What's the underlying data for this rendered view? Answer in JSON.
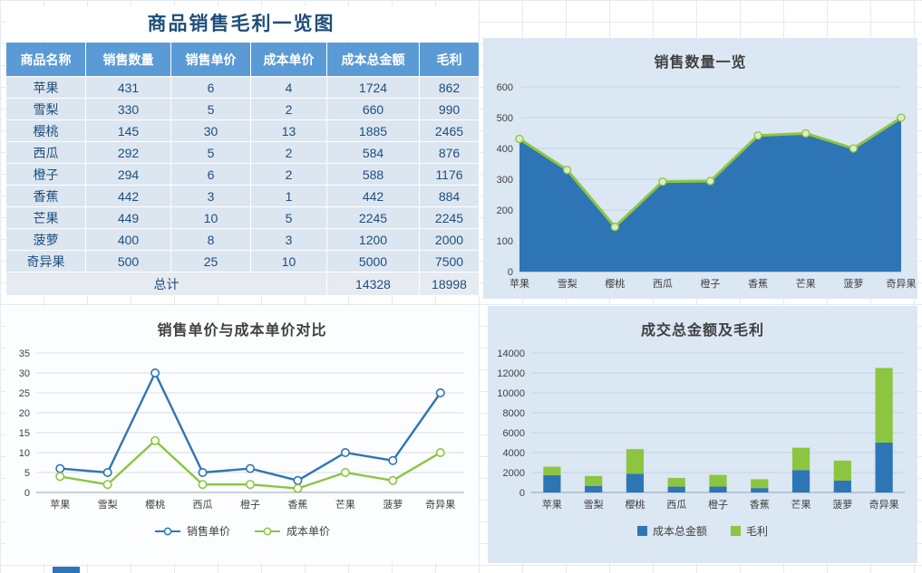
{
  "sheet": {
    "title": "商品销售毛利一览图"
  },
  "colors": {
    "header_bg": "#5B9BD5",
    "row_bg": "#DCE6F1",
    "title_text": "#1F4E79",
    "accent_blue": "#2E75B6",
    "accent_green": "#8CC540"
  },
  "table": {
    "headers": [
      "商品名称",
      "销售数量",
      "销售单价",
      "成本单价",
      "成本总金额",
      "毛利"
    ],
    "rows": [
      [
        "苹果",
        431,
        6,
        4,
        1724,
        862
      ],
      [
        "雪梨",
        330,
        5,
        2,
        660,
        990
      ],
      [
        "樱桃",
        145,
        30,
        13,
        1885,
        2465
      ],
      [
        "西瓜",
        292,
        5,
        2,
        584,
        876
      ],
      [
        "橙子",
        294,
        6,
        2,
        588,
        1176
      ],
      [
        "香蕉",
        442,
        3,
        1,
        442,
        884
      ],
      [
        "芒果",
        449,
        10,
        5,
        2245,
        2245
      ],
      [
        "菠萝",
        400,
        8,
        3,
        1200,
        2000
      ],
      [
        "奇异果",
        500,
        25,
        10,
        5000,
        7500
      ]
    ],
    "total": {
      "label": "总计",
      "cost_total": 14328,
      "profit": 18998
    }
  },
  "chart_data": [
    {
      "type": "area",
      "title": "销售数量一览",
      "categories": [
        "苹果",
        "雪梨",
        "樱桃",
        "西瓜",
        "橙子",
        "香蕉",
        "芒果",
        "菠萝",
        "奇异果"
      ],
      "values": [
        431,
        330,
        145,
        292,
        294,
        442,
        449,
        400,
        500
      ],
      "ylim": [
        0,
        600
      ],
      "ytick_step": 100,
      "grid": true,
      "legend_position": "none",
      "area_color": "#2E75B6",
      "line_color": "#8CC540"
    },
    {
      "type": "line",
      "title": "销售单价与成本单价对比",
      "categories": [
        "苹果",
        "雪梨",
        "樱桃",
        "西瓜",
        "橙子",
        "香蕉",
        "芒果",
        "菠萝",
        "奇异果"
      ],
      "series": [
        {
          "name": "销售单价",
          "values": [
            6,
            5,
            30,
            5,
            6,
            3,
            10,
            8,
            25
          ],
          "color": "#2E75B6"
        },
        {
          "name": "成本单价",
          "values": [
            4,
            2,
            13,
            2,
            2,
            1,
            5,
            3,
            10
          ],
          "color": "#8CC540"
        }
      ],
      "ylim": [
        0,
        35
      ],
      "ytick_step": 5,
      "grid": true,
      "legend_position": "bottom"
    },
    {
      "type": "bar",
      "stacked": true,
      "title": "成交总金额及毛利",
      "categories": [
        "苹果",
        "雪梨",
        "樱桃",
        "西瓜",
        "橙子",
        "香蕉",
        "芒果",
        "菠萝",
        "奇异果"
      ],
      "series": [
        {
          "name": "成本总金额",
          "values": [
            1724,
            660,
            1885,
            584,
            588,
            442,
            2245,
            1200,
            5000
          ],
          "color": "#2E75B6"
        },
        {
          "name": "毛利",
          "values": [
            862,
            990,
            2465,
            876,
            1176,
            884,
            2245,
            2000,
            7500
          ],
          "color": "#8CC540"
        }
      ],
      "ylim": [
        0,
        14000
      ],
      "ytick_step": 2000,
      "grid": true,
      "legend_position": "bottom"
    }
  ]
}
